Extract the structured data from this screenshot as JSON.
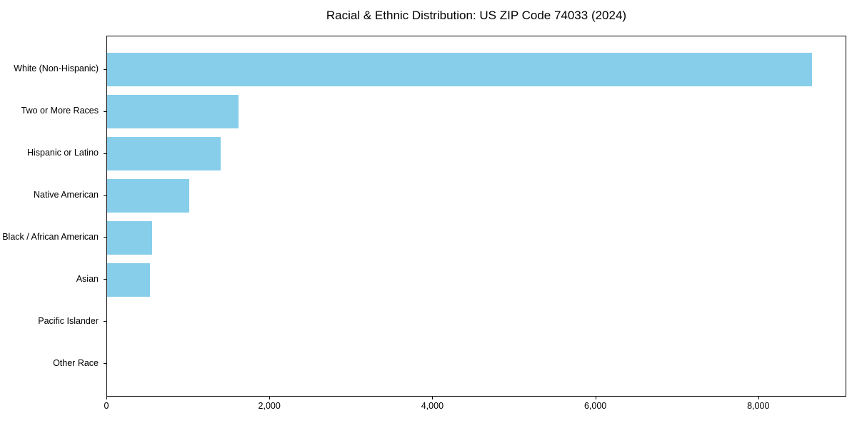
{
  "chart_data": {
    "type": "bar",
    "orientation": "horizontal",
    "title": "Racial & Ethnic Distribution: US ZIP Code 74033 (2024)",
    "categories": [
      "White (Non-Hispanic)",
      "Two or More Races",
      "Hispanic or Latino",
      "Native American",
      "Black / African American",
      "Asian",
      "Pacific Islander",
      "Other Race"
    ],
    "values": [
      8650,
      1610,
      1390,
      1010,
      550,
      525,
      0,
      0
    ],
    "xlabel": "",
    "ylabel": "",
    "xlim": [
      0,
      9080
    ],
    "xticks": [
      0,
      2000,
      4000,
      6000,
      8000
    ],
    "xtick_labels": [
      "0",
      "2,000",
      "4,000",
      "6,000",
      "8,000"
    ],
    "bar_color": "#87CEEB",
    "axis_color": "#000000",
    "background_color": "#ffffff",
    "grid": false,
    "legend": null
  }
}
